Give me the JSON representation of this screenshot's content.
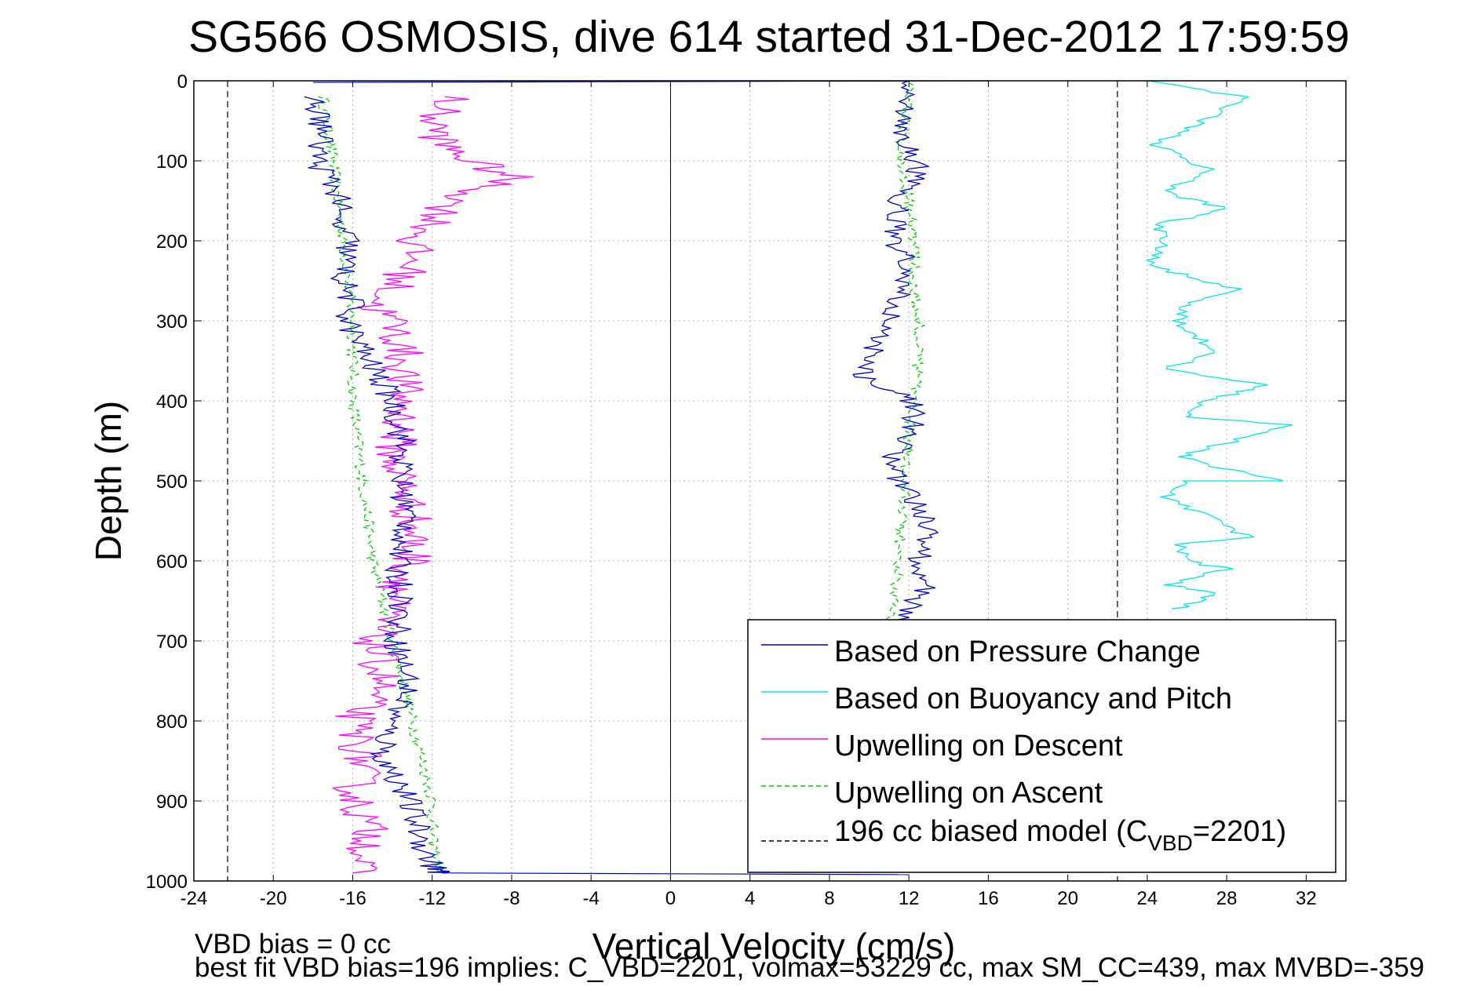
{
  "chart_data": {
    "type": "line",
    "title": "SG566 OSMOSIS, dive 614 started 31-Dec-2012 17:59:59",
    "xlabel": "Vertical Velocity (cm/s)",
    "ylabel": "Depth (m)",
    "xlim": [
      -24,
      34
    ],
    "ylim": [
      1000,
      0
    ],
    "y_reversed": true,
    "grid": true,
    "legend_position": "bottom-right",
    "x_ticks": [
      "-24",
      "-20",
      "-16",
      "-12",
      "-8",
      "-4",
      "0",
      "4",
      "8",
      "12",
      "16",
      "20",
      "24",
      "28",
      "32"
    ],
    "y_ticks": [
      "0",
      "100",
      "200",
      "300",
      "400",
      "500",
      "600",
      "700",
      "800",
      "900",
      "1000"
    ],
    "series": [
      {
        "name": "Based on Pressure Change",
        "color": "#0000cc",
        "style": "solid",
        "x_descent": [
          -18,
          -17.5,
          -17.8,
          -16.5,
          -17,
          -16.2,
          -16.5,
          -16,
          -16.3,
          -15.2,
          -14,
          -13.5,
          -13.6,
          -13.2,
          -13.8,
          -13.5,
          -13.8,
          -13.2,
          -13.5,
          -14.2,
          -14.5,
          -13.8,
          -13.2,
          -12.5,
          -12.2,
          -12,
          -11.8,
          -11.6,
          -11.5
        ],
        "x_ascent": [
          11,
          12.8,
          12.5,
          13,
          11.5,
          11,
          12,
          12.2,
          12.3,
          12,
          11.5,
          10.5,
          9.5,
          10.2,
          11,
          11.5,
          11.8,
          11.2,
          11.5,
          12.5,
          12,
          11.5,
          12,
          12
        ],
        "depth_descent": [
          20,
          60,
          100,
          150,
          170,
          200,
          250,
          280,
          300,
          350,
          400,
          450,
          500,
          550,
          600,
          650,
          700,
          750,
          780,
          800,
          850,
          870,
          900,
          950,
          970,
          980,
          985,
          988,
          990
        ],
        "depth_ascent": [
          680,
          640,
          600,
          550,
          500,
          470,
          450,
          430,
          410,
          400,
          390,
          380,
          370,
          340,
          300,
          270,
          220,
          200,
          150,
          110,
          80,
          50,
          20,
          0
        ]
      },
      {
        "name": "Based on Buoyancy and Pitch",
        "color": "#00e6e6",
        "style": "solid",
        "x_ascent": [
          25.5,
          27.5,
          25,
          28,
          26,
          25.5,
          29,
          25,
          26,
          30.5,
          25.5,
          27,
          31,
          26,
          27,
          30,
          25,
          27.5,
          25.5,
          26,
          28.5,
          24,
          25,
          24.5,
          28,
          25,
          27,
          24.5,
          29,
          24
        ],
        "depth_ascent": [
          660,
          640,
          630,
          610,
          600,
          580,
          570,
          520,
          500,
          500,
          470,
          460,
          430,
          420,
          400,
          380,
          360,
          340,
          300,
          280,
          260,
          230,
          200,
          180,
          160,
          140,
          110,
          80,
          20,
          0
        ]
      },
      {
        "name": "Upwelling on Descent",
        "color": "#ff00ff",
        "style": "solid",
        "x": [
          -11,
          -12,
          -11.5,
          -10,
          -9,
          -8,
          -11,
          -12,
          -13,
          -13,
          -14,
          -15,
          -14,
          -13.5,
          -13.5,
          -13.5,
          -14,
          -13.5,
          -13,
          -13,
          -14,
          -15,
          -14.5,
          -16,
          -15.5,
          -16,
          -15,
          -16
        ],
        "depth": [
          20,
          50,
          80,
          100,
          110,
          120,
          150,
          180,
          200,
          230,
          260,
          280,
          300,
          340,
          380,
          430,
          470,
          500,
          550,
          600,
          650,
          700,
          750,
          800,
          850,
          890,
          950,
          990
        ]
      },
      {
        "name": "Upwelling on Ascent",
        "color": "#00cc00",
        "style": "dashed",
        "x_descent": [
          -17.5,
          -17,
          -16.5,
          -16,
          -16,
          -15.5,
          -15,
          -14.5,
          -14,
          -13.5,
          -13,
          -12.5,
          -12,
          -12,
          -11.5
        ],
        "x_ascent": [
          11,
          11.5,
          11.8,
          12,
          12.2,
          12.5,
          12.5,
          12.3,
          12.2,
          12,
          11.5,
          11.8,
          12
        ],
        "depth_descent": [
          20,
          100,
          200,
          300,
          400,
          500,
          600,
          650,
          700,
          750,
          800,
          850,
          900,
          950,
          990
        ],
        "depth_ascent": [
          680,
          600,
          500,
          450,
          400,
          350,
          300,
          250,
          200,
          150,
          100,
          50,
          0
        ]
      },
      {
        "name": "196 cc biased model (C",
        "name_sub": "VBD",
        "name_tail": "=2201)",
        "color": "#000000",
        "style": "dashed",
        "x_left": -22.3,
        "x_right": 22.5,
        "depth_start": 0,
        "depth_end": 1000
      }
    ]
  },
  "footer": {
    "line1": "VBD bias = 0 cc",
    "line2": "best fit VBD bias=196 implies: C_VBD=2201, volmax=53229 cc, max SM_CC=439, max MVBD=-359"
  }
}
